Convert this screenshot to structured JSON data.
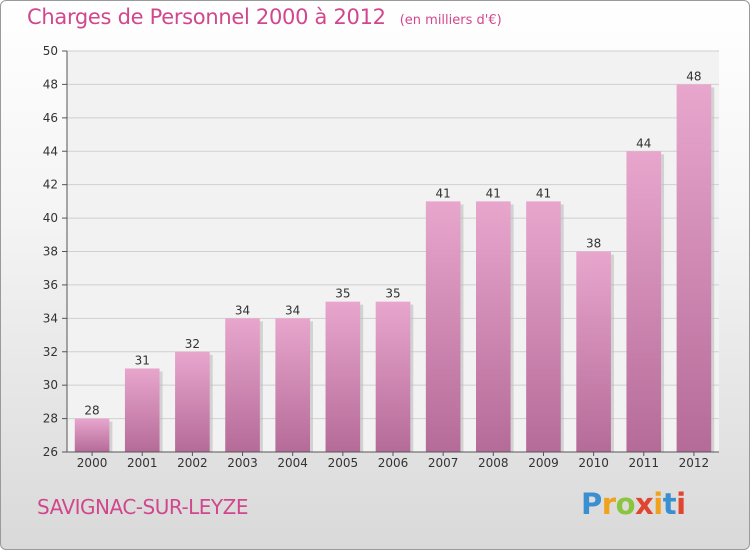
{
  "chart_data": {
    "type": "bar",
    "title": "Charges de Personnel 2000 à 2012",
    "unit": "(en milliers d'€)",
    "categories": [
      "2000",
      "2001",
      "2002",
      "2003",
      "2004",
      "2005",
      "2006",
      "2007",
      "2008",
      "2009",
      "2010",
      "2011",
      "2012"
    ],
    "values": [
      28,
      31,
      32,
      34,
      34,
      35,
      35,
      41,
      41,
      41,
      38,
      44,
      48
    ],
    "ylim": [
      26,
      50
    ],
    "yticks": [
      26,
      28,
      30,
      32,
      34,
      36,
      38,
      40,
      42,
      44,
      46,
      48,
      50
    ],
    "grid": true,
    "bar_color": "#d98ab8"
  },
  "place": "SAVIGNAC-SUR-LEYZE",
  "logo": {
    "letters": [
      "P",
      "r",
      "o",
      "x",
      "i",
      "t",
      "i"
    ],
    "colors": [
      "#3a8fd1",
      "#f0a21e",
      "#8bc43f",
      "#e2452f",
      "#f0a21e",
      "#3a8fd1",
      "#e2452f"
    ]
  }
}
